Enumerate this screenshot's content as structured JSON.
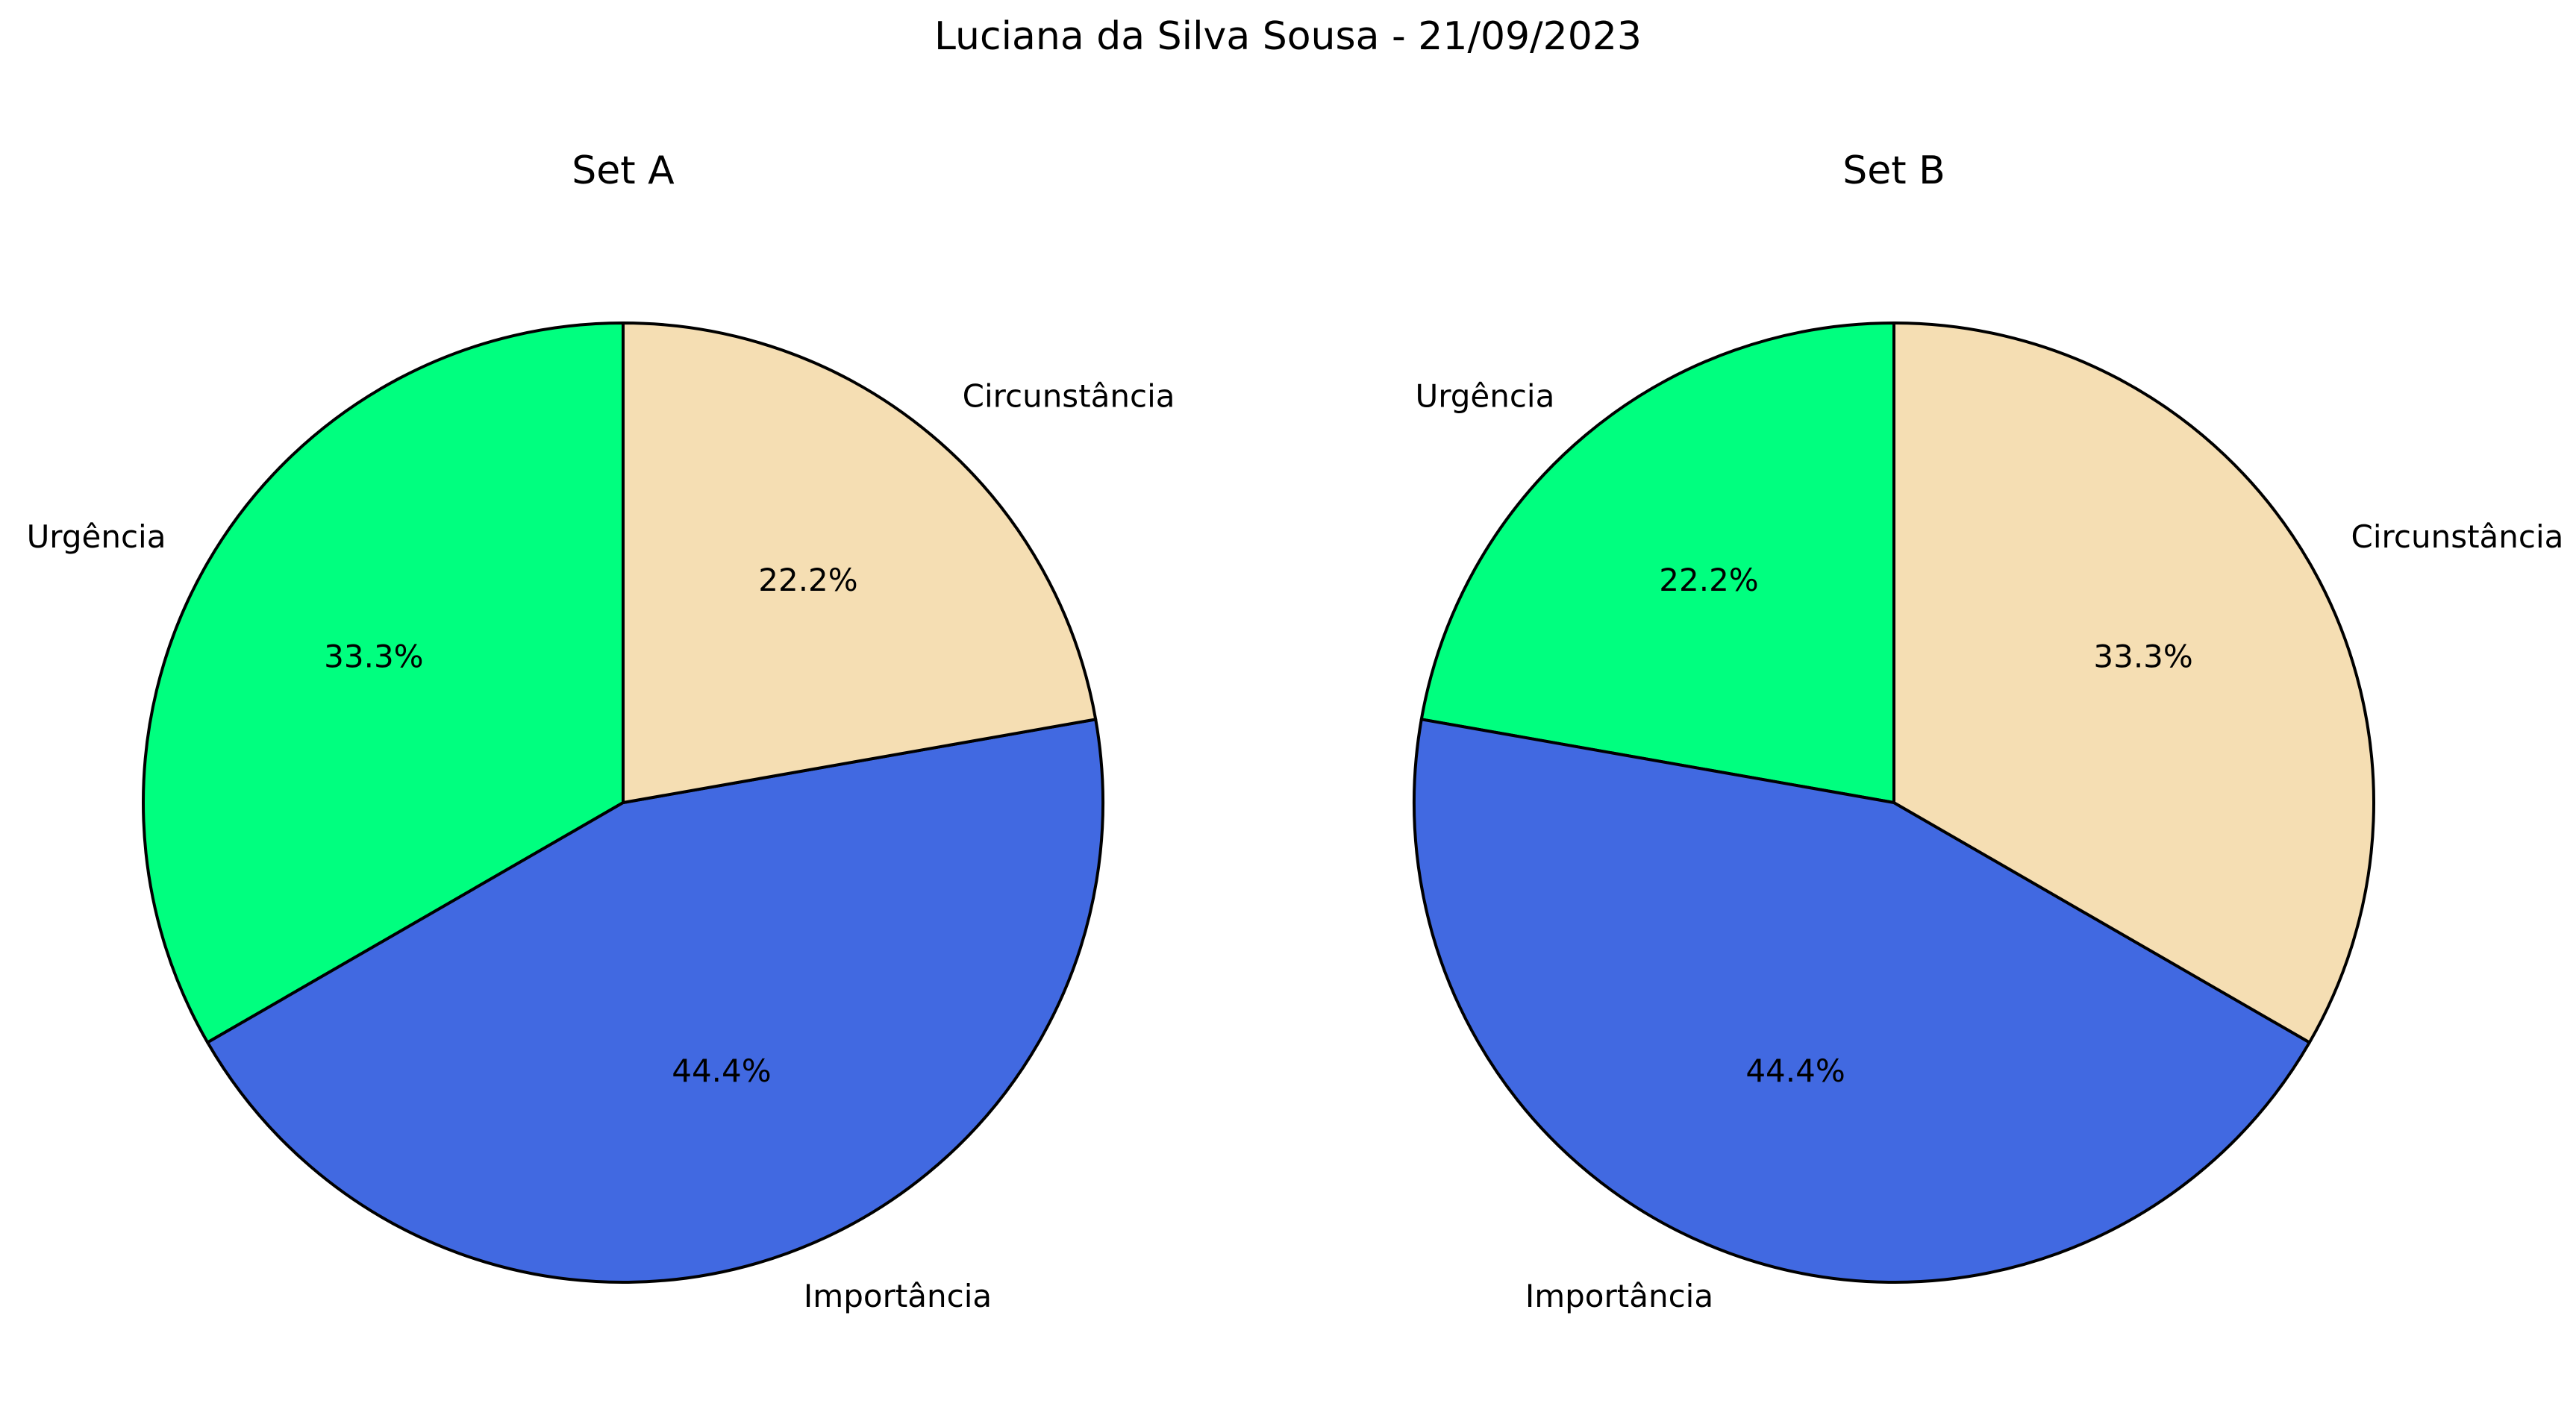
{
  "figure": {
    "title": "Luciana da Silva Sousa - 21/09/2023"
  },
  "chart_data": [
    {
      "type": "pie",
      "title": "Set A",
      "labels": [
        "Urgência",
        "Importância",
        "Circunstância"
      ],
      "values": [
        33.3,
        44.4,
        22.2
      ],
      "percent_labels": [
        "33.3%",
        "44.4%",
        "22.2%"
      ],
      "colors": [
        "#00ff7f",
        "#4169e1",
        "#f5deb3"
      ],
      "start_angle_deg": 90,
      "direction": "counterclockwise",
      "edge_color": "#000000"
    },
    {
      "type": "pie",
      "title": "Set B",
      "labels": [
        "Urgência",
        "Importância",
        "Circunstância"
      ],
      "values": [
        22.2,
        44.4,
        33.3
      ],
      "percent_labels": [
        "22.2%",
        "44.4%",
        "33.3%"
      ],
      "colors": [
        "#00ff7f",
        "#4169e1",
        "#f5deb3"
      ],
      "start_angle_deg": 90,
      "direction": "counterclockwise",
      "edge_color": "#000000"
    }
  ]
}
